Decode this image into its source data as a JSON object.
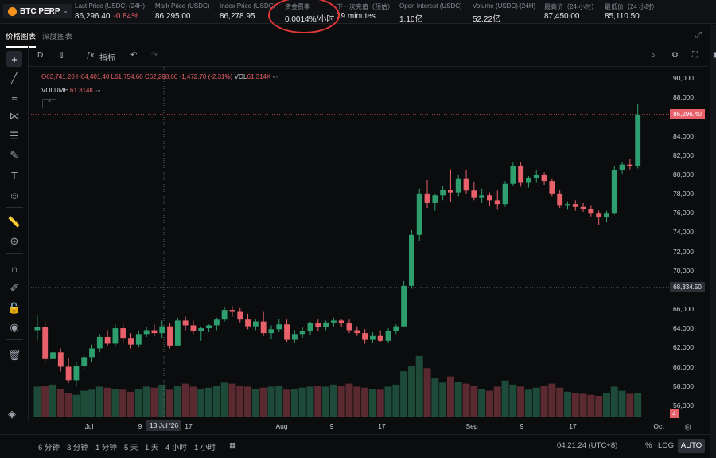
{
  "market": {
    "name": "BTC PERP",
    "chevron": "chevron-down-icon"
  },
  "stats": [
    {
      "label": "Last Price (USDC) (24H)",
      "value": "86,296.40",
      "change": "-0.84%"
    },
    {
      "label": "Mark Price (USDC)",
      "value": "86,295.00"
    },
    {
      "label": "Index Price (USDC)",
      "value": "86,278.95"
    },
    {
      "label": "资金费率",
      "value": "0.0014%/小时"
    },
    {
      "label": "下一次充值（预估）",
      "value": "39 minutes"
    },
    {
      "label": "Open Interest (USDC)",
      "value": "1.10亿"
    },
    {
      "label": "Volume (USDC) (24H)",
      "value": "52.22亿"
    },
    {
      "label": "最高价（24 小时）",
      "value": "87,450.00"
    },
    {
      "label": "最低价（24 小时）",
      "value": "85,110.50"
    }
  ],
  "tabs": [
    {
      "label": "价格图表",
      "active": true
    },
    {
      "label": "深度图表",
      "active": false
    }
  ],
  "toolbar": {
    "interval": "D",
    "indicators_label": "指标"
  },
  "legend": {
    "o": "O63,741.20",
    "h": "H64,401.40",
    "l": "L61,754.60",
    "c": "C62,268.60",
    "chg": "-1,472.70 (-2.31%)",
    "vol_label": "VOL",
    "vol": "61.314K",
    "volume_label": "VOLUME",
    "volume": "61.314K"
  },
  "axis": {
    "y_ticks": [
      "90,000",
      "88,000",
      "84,000",
      "82,000",
      "80,000",
      "78,000",
      "76,000",
      "74,000",
      "72,000",
      "70,000",
      "66,000",
      "64,000",
      "62,000",
      "60,000",
      "58,000",
      "56,000"
    ],
    "last_price_tag": "86,296.40",
    "crosshair_price_tag": "68,334.50",
    "vol_tag": "4",
    "x_ticks": [
      "Jul",
      "9",
      "17",
      "Aug",
      "9",
      "17",
      "Sep",
      "9",
      "17",
      "Oct"
    ],
    "crosshair_date_tag": "13 Jul '26"
  },
  "colors": {
    "up": "#2e9e6e",
    "down": "#e8616a",
    "up_vol": "#1e4a3a",
    "down_vol": "#5a2a30"
  },
  "chart_data": {
    "type": "candlestick",
    "ylim": [
      55000,
      91000
    ],
    "candles": [
      {
        "o": 63900,
        "h": 65500,
        "l": 62800,
        "c": 64200
      },
      {
        "o": 64200,
        "h": 64800,
        "l": 60500,
        "c": 60900
      },
      {
        "o": 60900,
        "h": 62500,
        "l": 59800,
        "c": 61600
      },
      {
        "o": 61600,
        "h": 62000,
        "l": 59600,
        "c": 60100
      },
      {
        "o": 60100,
        "h": 61000,
        "l": 58400,
        "c": 58700
      },
      {
        "o": 58700,
        "h": 60600,
        "l": 58100,
        "c": 60200
      },
      {
        "o": 60200,
        "h": 61400,
        "l": 59800,
        "c": 61100
      },
      {
        "o": 61100,
        "h": 62400,
        "l": 60600,
        "c": 62000
      },
      {
        "o": 62000,
        "h": 63500,
        "l": 61600,
        "c": 63200
      },
      {
        "o": 63200,
        "h": 63900,
        "l": 62300,
        "c": 62500
      },
      {
        "o": 62500,
        "h": 64500,
        "l": 62200,
        "c": 64100
      },
      {
        "o": 64100,
        "h": 64600,
        "l": 62600,
        "c": 63100
      },
      {
        "o": 63100,
        "h": 63600,
        "l": 62000,
        "c": 62400
      },
      {
        "o": 62400,
        "h": 63800,
        "l": 62100,
        "c": 63500
      },
      {
        "o": 63500,
        "h": 64200,
        "l": 63200,
        "c": 63900
      },
      {
        "o": 63900,
        "h": 64500,
        "l": 63300,
        "c": 63600
      },
      {
        "o": 63600,
        "h": 64900,
        "l": 63100,
        "c": 64300
      },
      {
        "o": 64300,
        "h": 64600,
        "l": 62000,
        "c": 62300
      },
      {
        "o": 62300,
        "h": 65200,
        "l": 62200,
        "c": 64900
      },
      {
        "o": 64900,
        "h": 65300,
        "l": 63900,
        "c": 64400
      },
      {
        "o": 64400,
        "h": 64900,
        "l": 63500,
        "c": 63800
      },
      {
        "o": 63800,
        "h": 64300,
        "l": 62800,
        "c": 64100
      },
      {
        "o": 64100,
        "h": 64500,
        "l": 63700,
        "c": 64400
      },
      {
        "o": 64400,
        "h": 65200,
        "l": 63900,
        "c": 65000
      },
      {
        "o": 65000,
        "h": 66300,
        "l": 64800,
        "c": 66000
      },
      {
        "o": 66000,
        "h": 66400,
        "l": 65300,
        "c": 65800
      },
      {
        "o": 65800,
        "h": 66200,
        "l": 64700,
        "c": 65000
      },
      {
        "o": 65000,
        "h": 65600,
        "l": 64000,
        "c": 64300
      },
      {
        "o": 64300,
        "h": 65000,
        "l": 63900,
        "c": 64800
      },
      {
        "o": 64800,
        "h": 65800,
        "l": 63300,
        "c": 63600
      },
      {
        "o": 63600,
        "h": 64400,
        "l": 63000,
        "c": 64000
      },
      {
        "o": 64000,
        "h": 65100,
        "l": 63700,
        "c": 64500
      },
      {
        "o": 64500,
        "h": 65000,
        "l": 62700,
        "c": 62900
      },
      {
        "o": 62900,
        "h": 63900,
        "l": 62600,
        "c": 63500
      },
      {
        "o": 63500,
        "h": 64200,
        "l": 63100,
        "c": 63800
      },
      {
        "o": 63800,
        "h": 64800,
        "l": 63400,
        "c": 64600
      },
      {
        "o": 64600,
        "h": 65000,
        "l": 63800,
        "c": 64200
      },
      {
        "o": 64200,
        "h": 64900,
        "l": 63900,
        "c": 64700
      },
      {
        "o": 64700,
        "h": 65200,
        "l": 64300,
        "c": 64900
      },
      {
        "o": 64900,
        "h": 65100,
        "l": 64200,
        "c": 64600
      },
      {
        "o": 64600,
        "h": 65000,
        "l": 63600,
        "c": 63900
      },
      {
        "o": 63900,
        "h": 64300,
        "l": 63300,
        "c": 63600
      },
      {
        "o": 63600,
        "h": 64000,
        "l": 62500,
        "c": 62900
      },
      {
        "o": 62900,
        "h": 63700,
        "l": 62600,
        "c": 63300
      },
      {
        "o": 63300,
        "h": 63900,
        "l": 62700,
        "c": 62800
      },
      {
        "o": 62800,
        "h": 64100,
        "l": 62600,
        "c": 63800
      },
      {
        "o": 63800,
        "h": 64500,
        "l": 63500,
        "c": 64300
      },
      {
        "o": 64300,
        "h": 69000,
        "l": 64200,
        "c": 68500
      },
      {
        "o": 68500,
        "h": 74300,
        "l": 68200,
        "c": 73800
      },
      {
        "o": 73800,
        "h": 78600,
        "l": 73200,
        "c": 78100
      },
      {
        "o": 78100,
        "h": 79500,
        "l": 76600,
        "c": 77100
      },
      {
        "o": 77100,
        "h": 78100,
        "l": 76300,
        "c": 77900
      },
      {
        "o": 77900,
        "h": 78900,
        "l": 77400,
        "c": 78500
      },
      {
        "o": 78500,
        "h": 80600,
        "l": 77200,
        "c": 78200
      },
      {
        "o": 78200,
        "h": 80000,
        "l": 77800,
        "c": 79600
      },
      {
        "o": 79600,
        "h": 80500,
        "l": 78100,
        "c": 78400
      },
      {
        "o": 78400,
        "h": 79300,
        "l": 77400,
        "c": 77700
      },
      {
        "o": 77700,
        "h": 78600,
        "l": 77100,
        "c": 77900
      },
      {
        "o": 77900,
        "h": 78200,
        "l": 76800,
        "c": 77400
      },
      {
        "o": 77400,
        "h": 78400,
        "l": 76400,
        "c": 77000
      },
      {
        "o": 77000,
        "h": 79400,
        "l": 76700,
        "c": 79100
      },
      {
        "o": 79100,
        "h": 81300,
        "l": 78900,
        "c": 80900
      },
      {
        "o": 80900,
        "h": 81300,
        "l": 78800,
        "c": 79200
      },
      {
        "o": 79200,
        "h": 79900,
        "l": 78700,
        "c": 79700
      },
      {
        "o": 79700,
        "h": 80500,
        "l": 79200,
        "c": 80000
      },
      {
        "o": 80000,
        "h": 80300,
        "l": 79000,
        "c": 79400
      },
      {
        "o": 79400,
        "h": 79600,
        "l": 77800,
        "c": 78100
      },
      {
        "o": 78100,
        "h": 78500,
        "l": 76600,
        "c": 76900
      },
      {
        "o": 76900,
        "h": 77300,
        "l": 76400,
        "c": 77000
      },
      {
        "o": 77000,
        "h": 77400,
        "l": 76300,
        "c": 76700
      },
      {
        "o": 76700,
        "h": 77100,
        "l": 76200,
        "c": 76500
      },
      {
        "o": 76500,
        "h": 76900,
        "l": 75700,
        "c": 76000
      },
      {
        "o": 76000,
        "h": 76300,
        "l": 74800,
        "c": 75600
      },
      {
        "o": 75600,
        "h": 76300,
        "l": 75100,
        "c": 76000
      },
      {
        "o": 76000,
        "h": 80900,
        "l": 75900,
        "c": 80500
      },
      {
        "o": 80500,
        "h": 81400,
        "l": 80100,
        "c": 81100
      },
      {
        "o": 81100,
        "h": 81700,
        "l": 80600,
        "c": 80900
      },
      {
        "o": 80900,
        "h": 87400,
        "l": 80700,
        "c": 86296
      }
    ],
    "volume": [
      30,
      31,
      32,
      28,
      24,
      22,
      26,
      27,
      30,
      29,
      28,
      27,
      25,
      28,
      30,
      29,
      32,
      27,
      31,
      33,
      30,
      28,
      29,
      31,
      34,
      33,
      31,
      30,
      28,
      29,
      30,
      31,
      27,
      28,
      29,
      30,
      31,
      30,
      32,
      31,
      33,
      30,
      29,
      28,
      27,
      30,
      32,
      45,
      50,
      60,
      48,
      38,
      34,
      40,
      35,
      33,
      31,
      28,
      26,
      30,
      36,
      32,
      30,
      27,
      29,
      31,
      33,
      29,
      25,
      24,
      23,
      22,
      21,
      24,
      30,
      26,
      23,
      24
    ],
    "vol_max": 70
  },
  "bottom": {
    "ranges": [
      "6 分钟",
      "3 分钟",
      "1 分钟",
      "5 天",
      "1 天",
      "4 小时",
      "1 小时"
    ],
    "clock": "04:21:24 (UTC+8)",
    "percent": "%",
    "log": "LOG",
    "auto": "AUTO"
  }
}
